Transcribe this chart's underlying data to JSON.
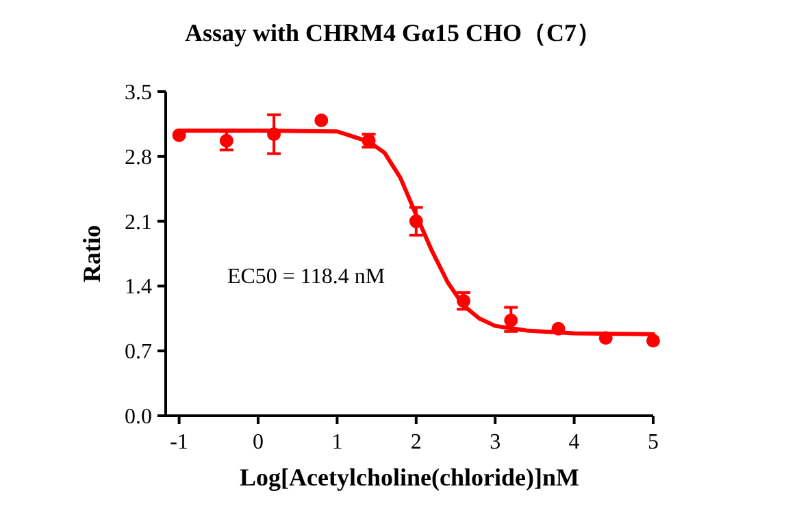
{
  "chart_data": {
    "type": "scatter",
    "title": "Assay with CHRM4 Gα15 CHO（C7）",
    "xlabel": "Log[Acetylcholine(chloride)]nM",
    "ylabel": "Ratio",
    "annotations": [
      "EC50 = 118.4 nM"
    ],
    "xlim": [
      -1.17,
      5
    ],
    "xticks": [
      -1,
      0,
      1,
      2,
      3,
      4,
      5
    ],
    "ylim": [
      0,
      3.5
    ],
    "yticks": [
      {
        "value": 0,
        "label": "0.0"
      },
      {
        "value": 0.7,
        "label": "0.7"
      },
      {
        "value": 1.4,
        "label": "1.4"
      },
      {
        "value": 2.1,
        "label": "2.1"
      },
      {
        "value": 2.8,
        "label": "2.8"
      },
      {
        "value": 3.5,
        "label": "3.5"
      }
    ],
    "grid": false,
    "series": [
      {
        "color": "#ff0000",
        "marker": "circle",
        "x": [
          -1,
          -0.4,
          0.2,
          0.8,
          1.4,
          2.0,
          2.6,
          3.2,
          3.8,
          4.4,
          5.0
        ],
        "values": [
          3.03,
          2.97,
          3.04,
          3.19,
          2.97,
          2.1,
          1.24,
          1.03,
          0.94,
          0.84,
          0.81
        ],
        "errors": [
          null,
          [
            2.87,
            3.07
          ],
          [
            2.83,
            3.25
          ],
          null,
          [
            2.9,
            3.04
          ],
          [
            1.95,
            2.25
          ],
          [
            1.15,
            1.33
          ],
          [
            0.91,
            1.17
          ],
          null,
          null,
          null
        ]
      },
      {
        "type": "line",
        "color": "#ff0000",
        "line_style": "solid",
        "x": [
          -1,
          0,
          1,
          1.4,
          1.6,
          1.8,
          2.0,
          2.2,
          2.4,
          2.6,
          2.8,
          3.0,
          3.4,
          4.0,
          5.0
        ],
        "values": [
          3.08,
          3.08,
          3.07,
          2.96,
          2.84,
          2.57,
          2.17,
          1.78,
          1.44,
          1.19,
          1.05,
          0.97,
          0.92,
          0.89,
          0.88
        ]
      }
    ]
  }
}
